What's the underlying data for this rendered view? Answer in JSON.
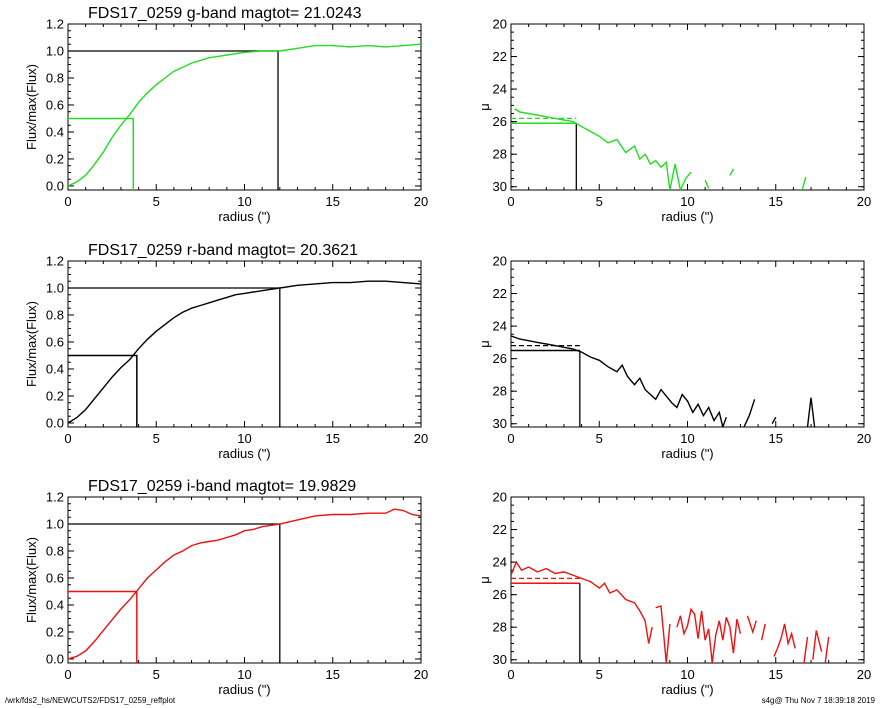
{
  "footer": {
    "path": "/wrk/fds2_hs/NEWCUTS2/FDS17_0259_reffplot",
    "stamp": "s4g@  Thu Nov  7 18:39:18 2019"
  },
  "chart_data": [
    {
      "id": "g-growth",
      "type": "line",
      "title": "FDS17_0259 g-band  magtot=      21.0243",
      "xlabel": "radius (\")",
      "ylabel": "Flux/max(Flux)",
      "xlim": [
        0,
        20
      ],
      "ylim": [
        -0.03,
        1.2
      ],
      "xticks": [
        "0",
        "5",
        "10",
        "15",
        "20"
      ],
      "yticks": [
        "0.0",
        "0.2",
        "0.4",
        "0.6",
        "0.8",
        "1.0",
        "1.2"
      ],
      "color": "#22dd22",
      "x": [
        0,
        0.5,
        1,
        1.5,
        2,
        2.5,
        3,
        3.5,
        4,
        4.5,
        5,
        5.5,
        6,
        6.5,
        7,
        7.5,
        8,
        8.5,
        9,
        9.5,
        10,
        10.5,
        11,
        11.5,
        12,
        13,
        14,
        15,
        16,
        17,
        18,
        19,
        20
      ],
      "y": [
        0,
        0.03,
        0.08,
        0.16,
        0.25,
        0.36,
        0.45,
        0.53,
        0.62,
        0.69,
        0.75,
        0.8,
        0.85,
        0.88,
        0.91,
        0.93,
        0.95,
        0.96,
        0.97,
        0.98,
        0.99,
        0.995,
        1.0,
        1.0,
        1.0,
        1.02,
        1.04,
        1.04,
        1.03,
        1.04,
        1.03,
        1.04,
        1.05
      ],
      "r_half": 3.7,
      "half_level": 0.5,
      "r_total": 11.9,
      "total_level": 1.0
    },
    {
      "id": "g-profile",
      "type": "line",
      "title": "",
      "xlabel": "radius (\")",
      "ylabel": "μ",
      "xlim": [
        0,
        20
      ],
      "ylim": [
        30.2,
        20
      ],
      "y_inverted": true,
      "xticks": [
        "0",
        "5",
        "10",
        "15",
        "20"
      ],
      "yticks": [
        "20",
        "22",
        "24",
        "26",
        "28",
        "30"
      ],
      "color": "#22dd22",
      "segments": [
        {
          "x": [
            0.2,
            0.5,
            1,
            1.5,
            2,
            2.5,
            3,
            3.5,
            4,
            4.5,
            5,
            5.5,
            6,
            6.5,
            7,
            7.3,
            7.6,
            7.9,
            8.2,
            8.5,
            8.8,
            9.0,
            9.3,
            9.6,
            9.9,
            10.2
          ],
          "y": [
            25.2,
            25.4,
            25.5,
            25.6,
            25.7,
            25.8,
            25.9,
            26.0,
            26.3,
            26.6,
            26.9,
            27.3,
            27.1,
            27.9,
            27.5,
            28.3,
            28.0,
            28.6,
            28.4,
            28.8,
            28.5,
            30.2,
            28.6,
            30.2,
            29.5,
            29.1
          ]
        },
        {
          "x": [
            11.0,
            11.2
          ],
          "y": [
            29.6,
            30.1
          ]
        },
        {
          "x": [
            12.4,
            12.6
          ],
          "y": [
            29.3,
            28.9
          ]
        },
        {
          "x": [
            16.5,
            16.7
          ],
          "y": [
            30.2,
            29.4
          ]
        }
      ],
      "r_half": 3.7,
      "mu_eff": 26.1,
      "mu_mean": 25.8,
      "r_total": null
    },
    {
      "id": "r-growth",
      "type": "line",
      "title": "FDS17_0259 r-band  magtot=      20.3621",
      "xlabel": "radius (\")",
      "ylabel": "Flux/max(Flux)",
      "xlim": [
        0,
        20
      ],
      "ylim": [
        -0.03,
        1.2
      ],
      "xticks": [
        "0",
        "5",
        "10",
        "15",
        "20"
      ],
      "yticks": [
        "0.0",
        "0.2",
        "0.4",
        "0.6",
        "0.8",
        "1.0",
        "1.2"
      ],
      "color": "#000000",
      "x": [
        0,
        0.5,
        1,
        1.5,
        2,
        2.5,
        3,
        3.5,
        4,
        4.5,
        5,
        5.5,
        6,
        6.5,
        7,
        7.5,
        8,
        8.5,
        9,
        9.5,
        10,
        10.5,
        11,
        11.5,
        12,
        13,
        14,
        15,
        16,
        17,
        18,
        19,
        20
      ],
      "y": [
        0,
        0.04,
        0.1,
        0.18,
        0.26,
        0.34,
        0.41,
        0.47,
        0.55,
        0.62,
        0.68,
        0.73,
        0.78,
        0.82,
        0.85,
        0.87,
        0.89,
        0.91,
        0.93,
        0.95,
        0.96,
        0.97,
        0.98,
        0.99,
        1.0,
        1.02,
        1.03,
        1.04,
        1.04,
        1.05,
        1.05,
        1.04,
        1.03
      ],
      "r_half": 3.9,
      "half_level": 0.5,
      "r_total": 12.0,
      "total_level": 1.0
    },
    {
      "id": "r-profile",
      "type": "line",
      "title": "",
      "xlabel": "radius (\")",
      "ylabel": "μ",
      "xlim": [
        0,
        20
      ],
      "ylim": [
        30.2,
        20
      ],
      "y_inverted": true,
      "xticks": [
        "0",
        "5",
        "10",
        "15",
        "20"
      ],
      "yticks": [
        "20",
        "22",
        "24",
        "26",
        "28",
        "30"
      ],
      "color": "#000000",
      "segments": [
        {
          "x": [
            0,
            0.5,
            1,
            1.5,
            2,
            2.5,
            3,
            3.5,
            4,
            4.5,
            5,
            5.5,
            6,
            6.3,
            6.6,
            7,
            7.3,
            7.6,
            7.9,
            8.2,
            8.5,
            8.8,
            9.1,
            9.4,
            9.7,
            10,
            10.3,
            10.6,
            10.9,
            11.2,
            11.5,
            11.8,
            12.0,
            12.2
          ],
          "y": [
            24.6,
            24.8,
            24.9,
            25.0,
            25.1,
            25.2,
            25.3,
            25.4,
            25.6,
            25.9,
            26.1,
            26.5,
            26.8,
            26.4,
            27.1,
            27.6,
            27.2,
            27.9,
            28.2,
            28.5,
            27.9,
            28.3,
            28.7,
            29.0,
            28.2,
            28.6,
            29.3,
            28.8,
            29.5,
            29.0,
            29.8,
            29.3,
            30.2,
            29.6
          ]
        },
        {
          "x": [
            13.2,
            13.5,
            13.8
          ],
          "y": [
            30.2,
            29.5,
            28.5
          ]
        },
        {
          "x": [
            14.8,
            15.0
          ],
          "y": [
            30.0,
            29.6
          ]
        },
        {
          "x": [
            16.8,
            17.0,
            17.2
          ],
          "y": [
            30.2,
            28.4,
            30.2
          ]
        }
      ],
      "r_half": 3.9,
      "mu_eff": 25.5,
      "mu_mean": 25.2,
      "r_total": null
    },
    {
      "id": "i-growth",
      "type": "line",
      "title": "FDS17_0259 i-band  magtot=      19.9829",
      "xlabel": "radius (\")",
      "ylabel": "Flux/max(Flux)",
      "xlim": [
        0,
        20
      ],
      "ylim": [
        -0.03,
        1.2
      ],
      "xticks": [
        "0",
        "5",
        "10",
        "15",
        "20"
      ],
      "yticks": [
        "0.0",
        "0.2",
        "0.4",
        "0.6",
        "0.8",
        "1.0",
        "1.2"
      ],
      "color": "#ee1111",
      "x": [
        0,
        0.5,
        1,
        1.5,
        2,
        2.5,
        3,
        3.5,
        4,
        4.5,
        5,
        5.5,
        6,
        6.5,
        7,
        7.5,
        8,
        8.5,
        9,
        9.5,
        10,
        10.5,
        11,
        11.5,
        12,
        13,
        14,
        15,
        16,
        17,
        18,
        18.5,
        19,
        19.5,
        20
      ],
      "y": [
        0,
        0.02,
        0.06,
        0.13,
        0.21,
        0.29,
        0.37,
        0.44,
        0.52,
        0.6,
        0.66,
        0.72,
        0.77,
        0.8,
        0.84,
        0.86,
        0.87,
        0.88,
        0.9,
        0.92,
        0.95,
        0.96,
        0.98,
        0.99,
        1.0,
        1.03,
        1.06,
        1.07,
        1.07,
        1.08,
        1.08,
        1.11,
        1.1,
        1.07,
        1.06
      ],
      "r_half": 3.9,
      "half_level": 0.5,
      "r_total": 12.0,
      "total_level": 1.0
    },
    {
      "id": "i-profile",
      "type": "line",
      "title": "",
      "xlabel": "radius (\")",
      "ylabel": "μ",
      "xlim": [
        0,
        20
      ],
      "ylim": [
        30.2,
        20
      ],
      "y_inverted": true,
      "xticks": [
        "0",
        "5",
        "10",
        "15",
        "20"
      ],
      "yticks": [
        "20",
        "22",
        "24",
        "26",
        "28",
        "30"
      ],
      "color": "#ee1111",
      "segments": [
        {
          "x": [
            0,
            0.3,
            0.6,
            1,
            1.5,
            2,
            2.5,
            3,
            3.5,
            4,
            4.5,
            5,
            5.3,
            5.6,
            6,
            6.5,
            7,
            7.3,
            7.6,
            7.8,
            8.0
          ],
          "y": [
            24.8,
            24.0,
            24.5,
            24.3,
            24.6,
            24.4,
            24.7,
            24.6,
            24.8,
            25.0,
            25.2,
            25.6,
            25.3,
            25.9,
            25.7,
            26.3,
            26.5,
            27.0,
            27.6,
            29.0,
            28.0
          ]
        },
        {
          "x": [
            8.2,
            8.5,
            8.8,
            9.0
          ],
          "y": [
            26.8,
            26.7,
            30.2,
            27.8
          ]
        },
        {
          "x": [
            9.4,
            9.6,
            9.8,
            10.0,
            10.2,
            10.4,
            10.6,
            10.8,
            11.0,
            11.2,
            11.4,
            11.6,
            11.8,
            12.0,
            12.2,
            12.4,
            12.6,
            12.8,
            13.0
          ],
          "y": [
            28.0,
            27.3,
            28.4,
            27.9,
            26.9,
            27.2,
            28.7,
            27.0,
            28.8,
            28.1,
            30.2,
            28.5,
            27.6,
            28.8,
            27.4,
            28.0,
            29.6,
            27.5,
            28.4
          ]
        },
        {
          "x": [
            13.4,
            13.7,
            13.9
          ],
          "y": [
            27.3,
            28.3,
            27.6
          ]
        },
        {
          "x": [
            14.2,
            14.4
          ],
          "y": [
            28.8,
            27.8
          ]
        },
        {
          "x": [
            14.9,
            15.1,
            15.3,
            15.5,
            15.7,
            15.9,
            16.1
          ],
          "y": [
            29.8,
            29.3,
            28.7,
            27.8,
            29.0,
            28.4,
            29.3
          ]
        },
        {
          "x": [
            16.6,
            16.8
          ],
          "y": [
            30.2,
            28.6
          ]
        },
        {
          "x": [
            17.1,
            17.3,
            17.6
          ],
          "y": [
            30.0,
            28.2,
            29.5
          ]
        },
        {
          "x": [
            17.8,
            18.0
          ],
          "y": [
            30.2,
            28.6
          ]
        }
      ],
      "r_half": 3.9,
      "mu_eff": 25.3,
      "mu_mean": 25.0,
      "r_total": null
    }
  ]
}
